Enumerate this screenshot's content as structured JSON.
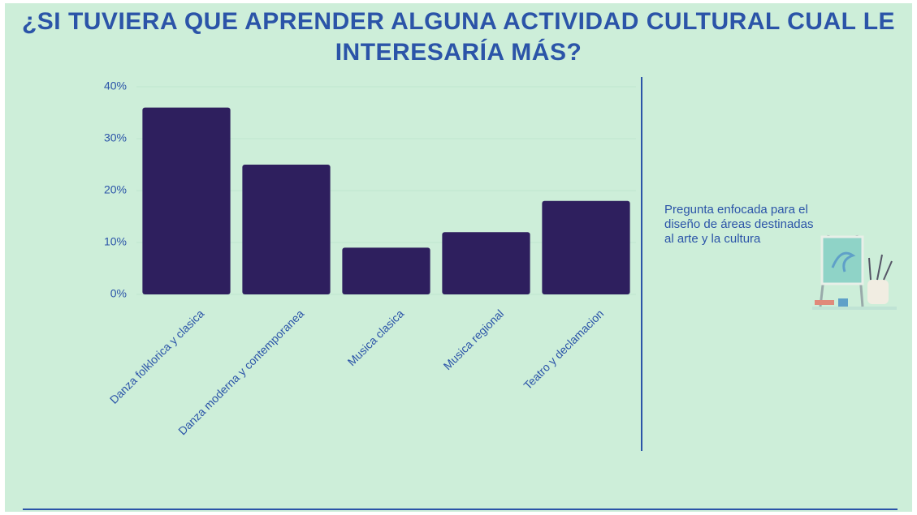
{
  "chart_data": {
    "type": "bar",
    "title": "¿SI TUVIERA QUE APRENDER ALGUNA ACTIVIDAD CULTURAL CUAL LE INTERESARÍA MÁS?",
    "categories": [
      "Danza folklorica y clasica",
      "Danza moderna y contemporanea",
      "Musica clasica",
      "Musica regional",
      "Teatro y declamacion"
    ],
    "values": [
      36,
      25,
      9,
      12,
      18
    ],
    "color": "#2e1f5e",
    "ylim": [
      0,
      40
    ],
    "yticks": [
      {
        "value": 0,
        "label": "0%"
      },
      {
        "value": 10,
        "label": "10%"
      },
      {
        "value": 20,
        "label": "20%"
      },
      {
        "value": 30,
        "label": "30%"
      },
      {
        "value": 40,
        "label": "40%"
      }
    ],
    "grid": true,
    "annotation": "Pregunta enfocada para el diseño de áreas destinadas al arte y la cultura"
  }
}
